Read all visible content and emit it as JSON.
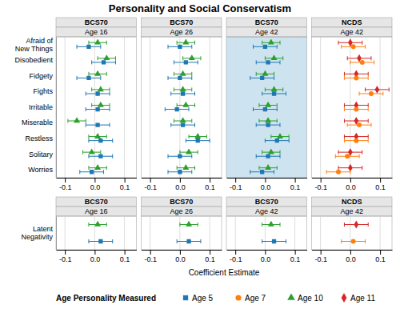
{
  "chart_data": {
    "type": "dot",
    "title": "Personality and Social Conservatism",
    "x_label": "Coefficient Estimate",
    "legend_title": "Age Personality Measured",
    "xlim": [
      -0.13,
      0.14
    ],
    "xticks": [
      -0.1,
      {
        "value": 0,
        "label": "0.0"
      },
      0.1
    ],
    "grid": true,
    "series": [
      {
        "name": "Age 5",
        "marker": "square"
      },
      {
        "name": "Age 7",
        "marker": "circle"
      },
      {
        "name": "Age 10",
        "marker": "triangle"
      },
      {
        "name": "Age 11",
        "marker": "diamond"
      }
    ],
    "rows": [
      {
        "categories": [
          "Afraid of\nNew Things",
          "Disobedient",
          "Fidgety",
          "Fights",
          "Irritable",
          "Miserable",
          "Restless",
          "Solitary",
          "Worries"
        ],
        "panels": [
          {
            "study": "BCS70",
            "age": "Age 16",
            "series": [
              {
                "name": "Age 10",
                "values": [
                  0.01,
                  0.04,
                  0.01,
                  0.02,
                  0.02,
                  -0.06,
                  0.01,
                  -0.01,
                  0.01
                ],
                "lo": [
                  -0.02,
                  0.01,
                  -0.02,
                  -0.01,
                  -0.01,
                  -0.09,
                  -0.02,
                  -0.04,
                  -0.02
                ],
                "hi": [
                  0.04,
                  0.07,
                  0.04,
                  0.05,
                  0.05,
                  -0.03,
                  0.04,
                  0.02,
                  0.04
                ]
              },
              {
                "name": "Age 5",
                "values": [
                  -0.02,
                  0.03,
                  -0.02,
                  0.01,
                  0.01,
                  0.01,
                  0.02,
                  0.02,
                  -0.01
                ],
                "lo": [
                  -0.06,
                  -0.01,
                  -0.06,
                  -0.03,
                  -0.03,
                  -0.03,
                  -0.02,
                  -0.02,
                  -0.05
                ],
                "hi": [
                  0.02,
                  0.07,
                  0.02,
                  0.05,
                  0.05,
                  0.05,
                  0.06,
                  0.06,
                  0.03
                ]
              }
            ]
          },
          {
            "study": "BCS70",
            "age": "Age 26",
            "series": [
              {
                "name": "Age 10",
                "values": [
                  0.02,
                  0.04,
                  0.01,
                  0.01,
                  0.02,
                  0.01,
                  0.06,
                  0.03,
                  0.02
                ],
                "lo": [
                  -0.01,
                  0.01,
                  -0.02,
                  -0.02,
                  -0.01,
                  -0.02,
                  0.03,
                  0.0,
                  -0.01
                ],
                "hi": [
                  0.05,
                  0.07,
                  0.04,
                  0.04,
                  0.05,
                  0.04,
                  0.09,
                  0.06,
                  0.05
                ]
              },
              {
                "name": "Age 5",
                "values": [
                  0.0,
                  0.02,
                  0.0,
                  0.01,
                  -0.01,
                  0.01,
                  0.06,
                  0.0,
                  0.0
                ],
                "lo": [
                  -0.04,
                  -0.02,
                  -0.04,
                  -0.03,
                  -0.05,
                  -0.03,
                  0.02,
                  -0.04,
                  -0.04
                ],
                "hi": [
                  0.04,
                  0.06,
                  0.04,
                  0.05,
                  0.03,
                  0.05,
                  0.1,
                  0.04,
                  0.04
                ]
              }
            ]
          },
          {
            "study": "BCS70",
            "age": "Age 42",
            "color": "#cde3f0",
            "series": [
              {
                "name": "Age 10",
                "values": [
                  0.02,
                  0.03,
                  0.0,
                  0.03,
                  0.01,
                  0.01,
                  0.05,
                  0.02,
                  0.01
                ],
                "lo": [
                  -0.01,
                  0.0,
                  -0.03,
                  0.0,
                  -0.02,
                  -0.02,
                  0.02,
                  -0.01,
                  -0.02
                ],
                "hi": [
                  0.05,
                  0.06,
                  0.03,
                  0.06,
                  0.04,
                  0.04,
                  0.08,
                  0.05,
                  0.04
                ]
              },
              {
                "name": "Age 5",
                "values": [
                  0.0,
                  0.01,
                  -0.01,
                  0.03,
                  0.0,
                  0.01,
                  0.04,
                  0.01,
                  -0.01
                ],
                "lo": [
                  -0.04,
                  -0.03,
                  -0.05,
                  -0.01,
                  -0.04,
                  -0.03,
                  0.0,
                  -0.03,
                  -0.05
                ],
                "hi": [
                  0.04,
                  0.05,
                  0.03,
                  0.07,
                  0.04,
                  0.05,
                  0.08,
                  0.05,
                  0.03
                ]
              }
            ]
          },
          {
            "study": "NCDS",
            "age": "Age 42",
            "series": [
              {
                "name": "Age 11",
                "values": [
                  0.0,
                  0.03,
                  0.02,
                  0.09,
                  0.02,
                  0.02,
                  0.02,
                  0.0,
                  0.0
                ],
                "lo": [
                  -0.04,
                  -0.01,
                  -0.02,
                  0.05,
                  -0.02,
                  -0.02,
                  -0.02,
                  -0.04,
                  -0.04
                ],
                "hi": [
                  0.04,
                  0.07,
                  0.06,
                  0.13,
                  0.06,
                  0.06,
                  0.06,
                  0.04,
                  0.04
                ]
              },
              {
                "name": "Age 7",
                "values": [
                  0.01,
                  0.04,
                  0.02,
                  0.07,
                  0.02,
                  0.03,
                  0.02,
                  -0.01,
                  -0.04
                ],
                "lo": [
                  -0.03,
                  0.0,
                  -0.02,
                  0.03,
                  -0.02,
                  -0.01,
                  -0.02,
                  -0.05,
                  -0.08
                ],
                "hi": [
                  0.05,
                  0.08,
                  0.06,
                  0.11,
                  0.06,
                  0.07,
                  0.06,
                  0.03,
                  0.0
                ]
              }
            ]
          }
        ]
      },
      {
        "categories": [
          "Latent\nNegativity"
        ],
        "panels": [
          {
            "study": "BCS70",
            "age": "Age 16",
            "series": [
              {
                "name": "Age 10",
                "values": [
                  0.01
                ],
                "lo": [
                  -0.02
                ],
                "hi": [
                  0.04
                ]
              },
              {
                "name": "Age 5",
                "values": [
                  0.02
                ],
                "lo": [
                  -0.02
                ],
                "hi": [
                  0.06
                ]
              }
            ]
          },
          {
            "study": "BCS70",
            "age": "Age 26",
            "series": [
              {
                "name": "Age 10",
                "values": [
                  0.03
                ],
                "lo": [
                  0.0
                ],
                "hi": [
                  0.06
                ]
              },
              {
                "name": "Age 5",
                "values": [
                  0.03
                ],
                "lo": [
                  -0.01
                ],
                "hi": [
                  0.07
                ]
              }
            ]
          },
          {
            "study": "BCS70",
            "age": "Age 42",
            "series": [
              {
                "name": "Age 10",
                "values": [
                  0.02
                ],
                "lo": [
                  -0.01
                ],
                "hi": [
                  0.05
                ]
              },
              {
                "name": "Age 5",
                "values": [
                  0.03
                ],
                "lo": [
                  -0.01
                ],
                "hi": [
                  0.07
                ]
              }
            ]
          },
          {
            "study": "NCDS",
            "age": "Age 42",
            "series": [
              {
                "name": "Age 11",
                "values": [
                  0.02
                ],
                "lo": [
                  -0.02
                ],
                "hi": [
                  0.06
                ]
              },
              {
                "name": "Age 7",
                "values": [
                  0.01
                ],
                "lo": [
                  -0.03
                ],
                "hi": [
                  0.05
                ]
              }
            ]
          }
        ]
      }
    ]
  }
}
